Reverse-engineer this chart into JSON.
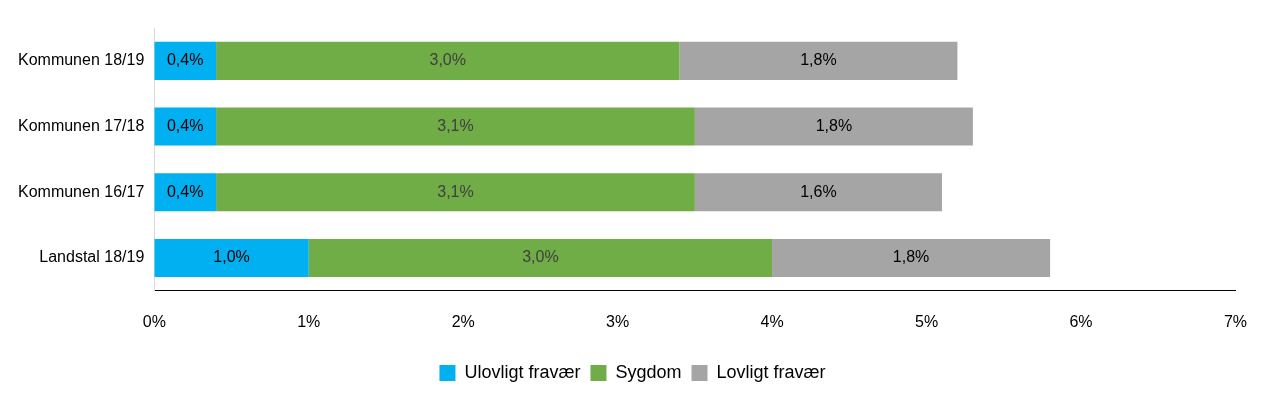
{
  "chart_data": {
    "type": "bar",
    "orientation": "horizontal",
    "stacked": true,
    "categories": [
      "Kommunen 18/19",
      "Kommunen 17/18",
      "Kommunen 16/17",
      "Landstal 18/19"
    ],
    "series": [
      {
        "name": "Ulovligt fravær",
        "color": "#00b0f0",
        "values": [
          0.4,
          0.4,
          0.4,
          1.0
        ],
        "value_labels": [
          "0,4%",
          "0,4%",
          "0,4%",
          "1,0%"
        ]
      },
      {
        "name": "Sygdom",
        "color": "#70ad47",
        "values": [
          3.0,
          3.1,
          3.1,
          3.0
        ],
        "value_labels": [
          "3,0%",
          "3,1%",
          "3,1%",
          "3,0%"
        ]
      },
      {
        "name": "Lovligt fravær",
        "color": "#a5a5a5",
        "values": [
          1.8,
          1.8,
          1.6,
          1.8
        ],
        "value_labels": [
          "1,8%",
          "1,8%",
          "1,6%",
          "1,8%"
        ]
      }
    ],
    "xlim": [
      0,
      7
    ],
    "xticks": [
      {
        "value": 0,
        "label": "0%"
      },
      {
        "value": 1,
        "label": "1%"
      },
      {
        "value": 2,
        "label": "2%"
      },
      {
        "value": 3,
        "label": "3%"
      },
      {
        "value": 4,
        "label": "4%"
      },
      {
        "value": 5,
        "label": "5%"
      },
      {
        "value": 6,
        "label": "6%"
      },
      {
        "value": 7,
        "label": "7%"
      }
    ],
    "grid": false,
    "legend": "bottom"
  }
}
